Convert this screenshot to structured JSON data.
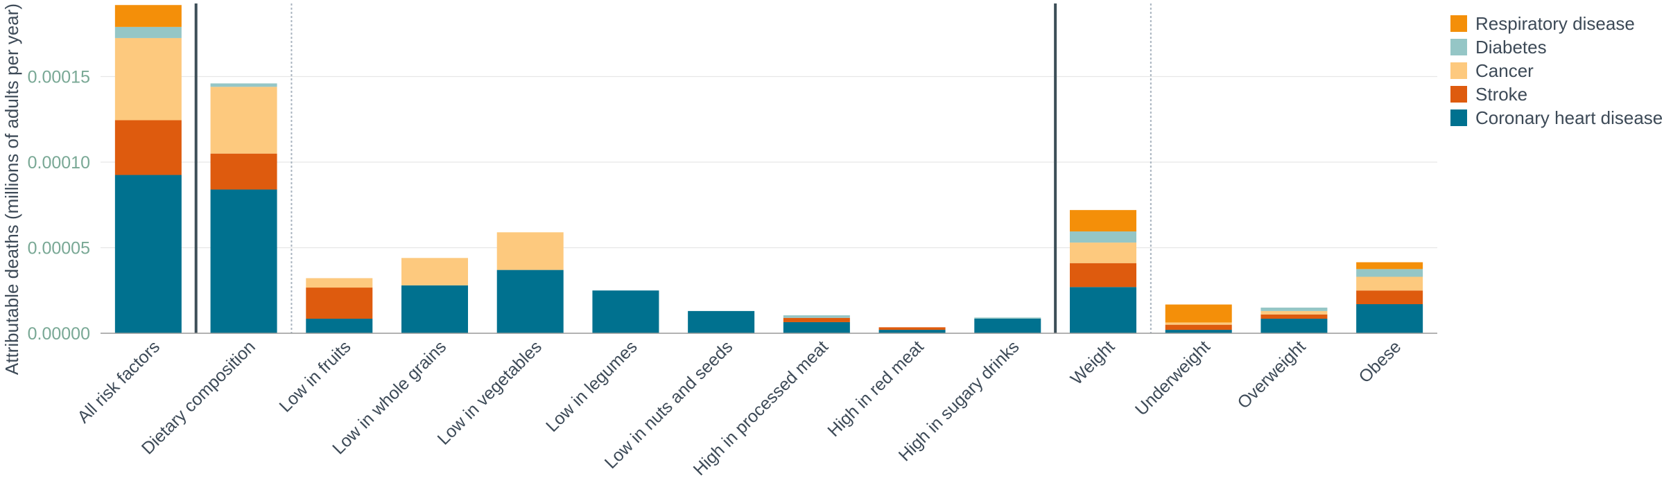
{
  "chart_data": {
    "type": "bar",
    "stacked": true,
    "ylabel": "Attributable deaths (millions of adults per year)",
    "ylim": [
      0,
      0.000193
    ],
    "yticks": [
      0,
      5e-05,
      0.0001,
      0.00015
    ],
    "ytick_labels": [
      "0.00000",
      "0.00005",
      "0.00010",
      "0.00015"
    ],
    "grid": true,
    "legend_position": "top-right",
    "categories": [
      "All risk factors",
      "Dietary composition",
      "Low in fruits",
      "Low in whole grains",
      "Low in vegetables",
      "Low in legumes",
      "Low in nuts and seeds",
      "High in processed meat",
      "High in red meat",
      "High in sugary drinks",
      "Weight",
      "Underweight",
      "Overweight",
      "Obese"
    ],
    "series": [
      {
        "name": "Coronary heart disease",
        "color": "#00718f",
        "values": [
          9.25e-05,
          8.4e-05,
          8.5e-06,
          2.8e-05,
          3.7e-05,
          2.5e-05,
          1.3e-05,
          6.5e-06,
          2e-06,
          8.5e-06,
          2.7e-05,
          2e-06,
          8.5e-06,
          1.7e-05
        ]
      },
      {
        "name": "Stroke",
        "color": "#de5b0e",
        "values": [
          3.2e-05,
          2.1e-05,
          1.82e-05,
          0,
          0,
          0,
          0,
          2.5e-06,
          1.5e-06,
          0,
          1.4e-05,
          3e-06,
          2.5e-06,
          8e-06
        ]
      },
      {
        "name": "Cancer",
        "color": "#fdc97e",
        "values": [
          4.8e-05,
          3.9e-05,
          5.5e-06,
          1.6e-05,
          2.2e-05,
          0,
          0,
          0,
          0,
          0,
          1.2e-05,
          1.3e-06,
          2e-06,
          8e-06
        ]
      },
      {
        "name": "Diabetes",
        "color": "#95c6c6",
        "values": [
          6.5e-06,
          2e-06,
          0,
          0,
          0,
          0,
          0,
          1.5e-06,
          0,
          7e-07,
          6.5e-06,
          0,
          2e-06,
          4.5e-06
        ]
      },
      {
        "name": "Respiratory disease",
        "color": "#f48f09",
        "values": [
          1.28e-05,
          0,
          0,
          0,
          0,
          0,
          0,
          0,
          0,
          0,
          1.25e-05,
          1.05e-05,
          0,
          4e-06
        ]
      }
    ],
    "separators": [
      {
        "after": 0,
        "style": "solid"
      },
      {
        "after": 1,
        "style": "dotted"
      },
      {
        "after": 9,
        "style": "solid"
      },
      {
        "after": 10,
        "style": "dotted"
      }
    ]
  }
}
